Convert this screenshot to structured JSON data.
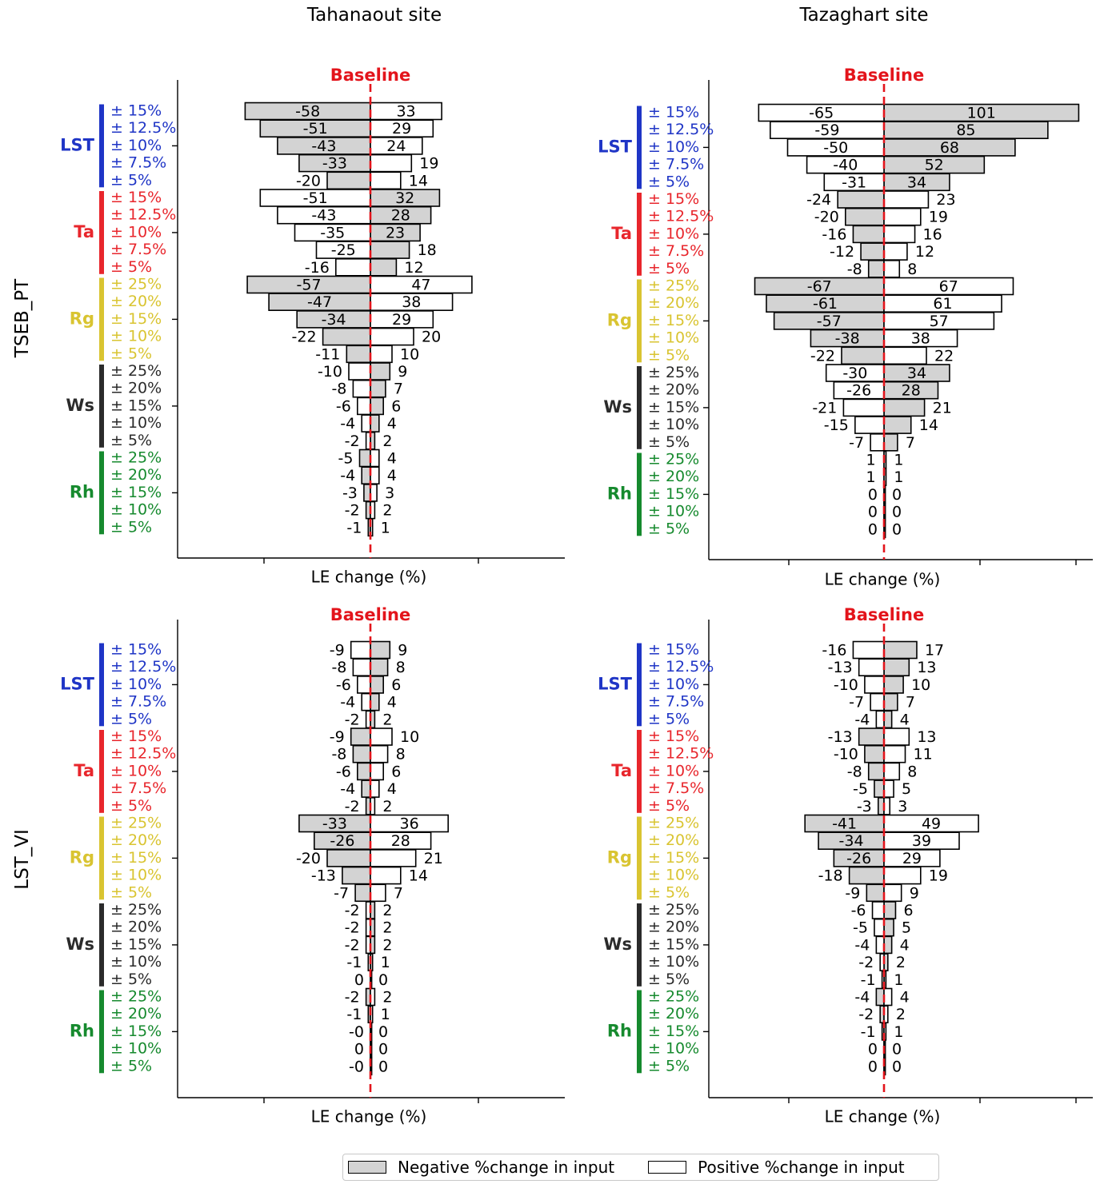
{
  "column_titles": [
    "Tahanaout site",
    "Tazaghart site"
  ],
  "row_titles": [
    "TSEB_PT",
    "LST_VI"
  ],
  "legend": {
    "negative": {
      "label": "Negative %change in input",
      "color": "#d3d3d3"
    },
    "positive": {
      "label": "Positive %change in input",
      "color": "#ffffff"
    }
  },
  "colors": {
    "LST": "#1f35c6",
    "Ta": "#e8262c",
    "Rg": "#d9c431",
    "Ws": "#2b2b2b",
    "Rh": "#168a2e",
    "baseline": "#e3141b"
  },
  "chart_data": [
    {
      "type": "bar",
      "orientation": "horizontal",
      "site": "Tahanaout site",
      "model": "TSEB_PT",
      "baseline_label": "Baseline",
      "xlabel": "LE change (%)",
      "groups": [
        {
          "name": "LST",
          "perturbations": [
            "± 15%",
            "± 12.5%",
            "± 10%",
            "± 7.5%",
            "± 5%"
          ],
          "negative_change": [
            -58,
            -51,
            -43,
            -33,
            -20
          ],
          "positive_change": [
            33,
            29,
            24,
            19,
            14
          ]
        },
        {
          "name": "Ta",
          "perturbations": [
            "± 15%",
            "± 12.5%",
            "± 10%",
            "± 7.5%",
            "± 5%"
          ],
          "negative_change": [
            32,
            28,
            23,
            18,
            12
          ],
          "positive_change": [
            -51,
            -43,
            -35,
            -25,
            -16
          ]
        },
        {
          "name": "Rg",
          "perturbations": [
            "± 25%",
            "± 20%",
            "± 15%",
            "± 10%",
            "± 5%"
          ],
          "negative_change": [
            -57,
            -47,
            -34,
            -22,
            -11
          ],
          "positive_change": [
            47,
            38,
            29,
            20,
            10
          ]
        },
        {
          "name": "Ws",
          "perturbations": [
            "± 25%",
            "± 20%",
            "± 15%",
            "± 10%",
            "± 5%"
          ],
          "negative_change": [
            9,
            7,
            6,
            4,
            2
          ],
          "positive_change": [
            -10,
            -8,
            -6,
            -4,
            -2
          ]
        },
        {
          "name": "Rh",
          "perturbations": [
            "± 25%",
            "± 20%",
            "± 15%",
            "± 10%",
            "± 5%"
          ],
          "negative_change": [
            -5,
            -4,
            -3,
            -2,
            -1
          ],
          "positive_change": [
            4,
            4,
            3,
            2,
            1
          ]
        }
      ]
    },
    {
      "type": "bar",
      "orientation": "horizontal",
      "site": "Tazaghart site",
      "model": "TSEB_PT",
      "baseline_label": "Baseline",
      "xlabel": "LE change (%)",
      "groups": [
        {
          "name": "LST",
          "perturbations": [
            "± 15%",
            "± 12.5%",
            "± 10%",
            "± 7.5%",
            "± 5%"
          ],
          "negative_change": [
            101,
            85,
            68,
            52,
            34
          ],
          "positive_change": [
            -65,
            -59,
            -50,
            -40,
            -31
          ]
        },
        {
          "name": "Ta",
          "perturbations": [
            "± 15%",
            "± 12.5%",
            "± 10%",
            "± 7.5%",
            "± 5%"
          ],
          "negative_change": [
            -24,
            -20,
            -16,
            -12,
            -8
          ],
          "positive_change": [
            23,
            19,
            16,
            12,
            8
          ]
        },
        {
          "name": "Rg",
          "perturbations": [
            "± 25%",
            "± 20%",
            "± 15%",
            "± 10%",
            "± 5%"
          ],
          "negative_change": [
            -67,
            -61,
            -57,
            -38,
            -22
          ],
          "positive_change": [
            67,
            61,
            57,
            38,
            22
          ]
        },
        {
          "name": "Ws",
          "perturbations": [
            "± 25%",
            "± 20%",
            "± 15%",
            "± 10%",
            "± 5%"
          ],
          "negative_change": [
            34,
            28,
            21,
            14,
            7
          ],
          "positive_change": [
            -30,
            -26,
            -21,
            -15,
            -7
          ]
        },
        {
          "name": "Rh",
          "perturbations": [
            "± 25%",
            "± 20%",
            "± 15%",
            "± 10%",
            "± 5%"
          ],
          "negative_change": [
            1,
            1,
            0,
            0,
            0
          ],
          "positive_change": [
            1,
            1,
            0,
            0,
            0
          ]
        }
      ]
    },
    {
      "type": "bar",
      "orientation": "horizontal",
      "site": "Tahanaout site",
      "model": "LST_VI",
      "baseline_label": "Baseline",
      "xlabel": "LE change (%)",
      "groups": [
        {
          "name": "LST",
          "perturbations": [
            "± 15%",
            "± 12.5%",
            "± 10%",
            "± 7.5%",
            "± 5%"
          ],
          "negative_change": [
            9,
            8,
            6,
            4,
            2
          ],
          "positive_change": [
            -9,
            -8,
            -6,
            -4,
            -2
          ]
        },
        {
          "name": "Ta",
          "perturbations": [
            "± 15%",
            "± 12.5%",
            "± 10%",
            "± 7.5%",
            "± 5%"
          ],
          "negative_change": [
            -9,
            -8,
            -6,
            -4,
            -2
          ],
          "positive_change": [
            10,
            8,
            6,
            4,
            2
          ]
        },
        {
          "name": "Rg",
          "perturbations": [
            "± 25%",
            "± 20%",
            "± 15%",
            "± 10%",
            "± 5%"
          ],
          "negative_change": [
            -33,
            -26,
            -20,
            -13,
            -7
          ],
          "positive_change": [
            36,
            28,
            21,
            14,
            7
          ]
        },
        {
          "name": "Ws",
          "perturbations": [
            "± 25%",
            "± 20%",
            "± 15%",
            "± 10%",
            "± 5%"
          ],
          "negative_change": [
            2,
            2,
            2,
            1,
            0
          ],
          "positive_change": [
            -2,
            -2,
            -2,
            -1,
            0
          ]
        },
        {
          "name": "Rh",
          "perturbations": [
            "± 25%",
            "± 20%",
            "± 15%",
            "± 10%",
            "± 5%"
          ],
          "negative_change": [
            -2,
            -1,
            0,
            0,
            0
          ],
          "positive_change": [
            2,
            1,
            0,
            0,
            0
          ]
        }
      ]
    },
    {
      "type": "bar",
      "orientation": "horizontal",
      "site": "Tazaghart site",
      "model": "LST_VI",
      "baseline_label": "Baseline",
      "xlabel": "LE change (%)",
      "groups": [
        {
          "name": "LST",
          "perturbations": [
            "± 15%",
            "± 12.5%",
            "± 10%",
            "± 7.5%",
            "± 5%"
          ],
          "negative_change": [
            17,
            13,
            10,
            7,
            4
          ],
          "positive_change": [
            -16,
            -13,
            -10,
            -7,
            -4
          ]
        },
        {
          "name": "Ta",
          "perturbations": [
            "± 15%",
            "± 12.5%",
            "± 10%",
            "± 7.5%",
            "± 5%"
          ],
          "negative_change": [
            -13,
            -10,
            -8,
            -5,
            -3
          ],
          "positive_change": [
            13,
            11,
            8,
            5,
            3
          ]
        },
        {
          "name": "Rg",
          "perturbations": [
            "± 25%",
            "± 20%",
            "± 15%",
            "± 10%",
            "± 5%"
          ],
          "negative_change": [
            -41,
            -34,
            -26,
            -18,
            -9
          ],
          "positive_change": [
            49,
            39,
            29,
            19,
            9
          ]
        },
        {
          "name": "Ws",
          "perturbations": [
            "± 25%",
            "± 20%",
            "± 15%",
            "± 10%",
            "± 5%"
          ],
          "negative_change": [
            6,
            5,
            4,
            2,
            1
          ],
          "positive_change": [
            -6,
            -5,
            -4,
            -2,
            -1
          ]
        },
        {
          "name": "Rh",
          "perturbations": [
            "± 25%",
            "± 20%",
            "± 15%",
            "± 10%",
            "± 5%"
          ],
          "negative_change": [
            -4,
            -2,
            -1,
            0,
            0
          ],
          "positive_change": [
            4,
            2,
            1,
            0,
            0
          ]
        }
      ]
    }
  ]
}
